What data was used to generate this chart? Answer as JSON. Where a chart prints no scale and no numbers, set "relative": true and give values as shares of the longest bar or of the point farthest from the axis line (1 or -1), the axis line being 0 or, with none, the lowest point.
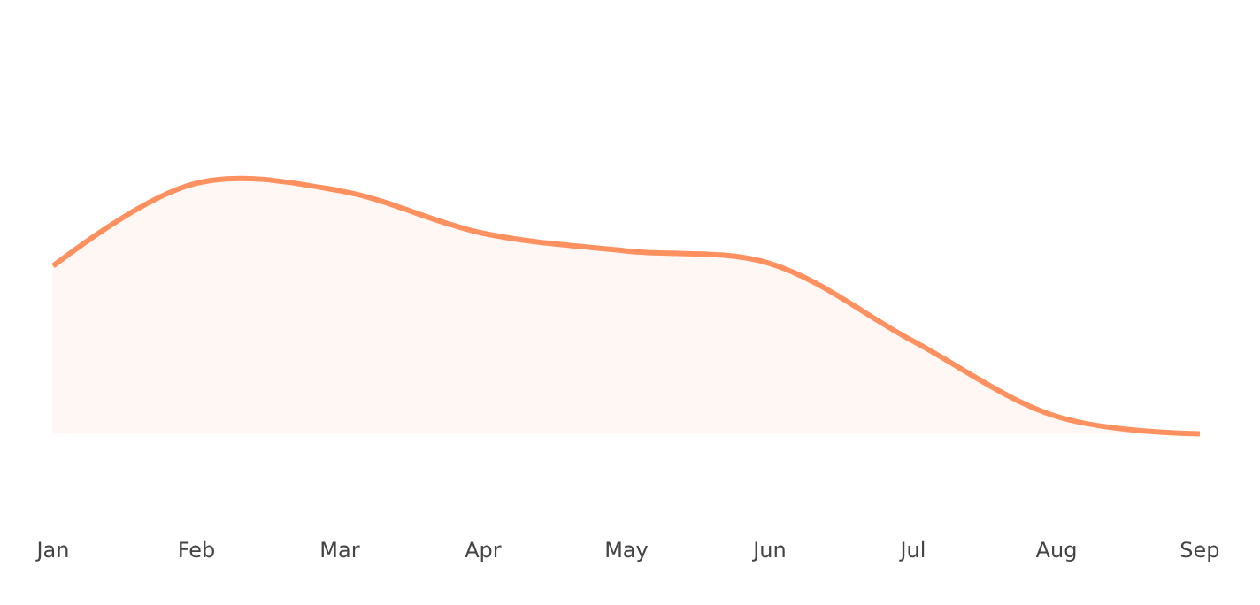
{
  "chart_data": {
    "type": "area",
    "relative": true,
    "categories": [
      "Jan",
      "Feb",
      "Mar",
      "Apr",
      "May",
      "Jun",
      "Jul",
      "Aug",
      "Sep"
    ],
    "series": [
      {
        "color": "#ff9160",
        "values": [
          0.67,
          1,
          0.97,
          0.8,
          0.73,
          0.68,
          0.37,
          0.07,
          0
        ]
      }
    ]
  }
}
